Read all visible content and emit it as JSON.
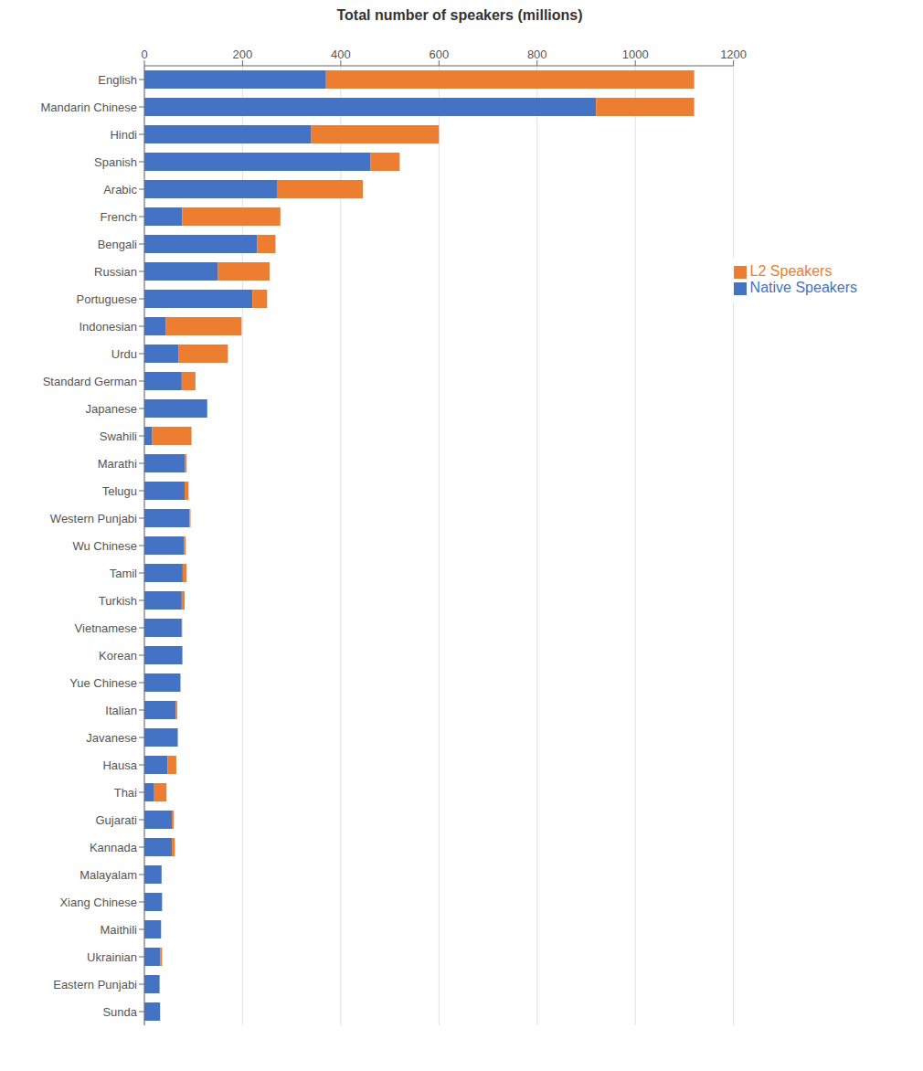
{
  "chart_data": {
    "type": "bar",
    "title": "Total number of speakers (millions)",
    "orientation": "horizontal",
    "stacked": true,
    "categories": [
      "English",
      "Mandarin Chinese",
      "Hindi",
      "Spanish",
      "Arabic",
      "French",
      "Bengali",
      "Russian",
      "Portuguese",
      "Indonesian",
      "Urdu",
      "Standard German",
      "Japanese",
      "Swahili",
      "Marathi",
      "Telugu",
      "Western Punjabi",
      "Wu Chinese",
      "Tamil",
      "Turkish",
      "Vietnamese",
      "Korean",
      "Yue Chinese",
      "Italian",
      "Javanese",
      "Hausa",
      "Thai",
      "Gujarati",
      "Kannada",
      "Malayalam",
      "Xiang Chinese",
      "Maithili",
      "Ukrainian",
      "Eastern Punjabi",
      "Sunda"
    ],
    "series": [
      {
        "name": "Native Speakers",
        "color": "#4472C4",
        "values": [
          370,
          920,
          340,
          460,
          270,
          77,
          230,
          150,
          220,
          43,
          70,
          76,
          128,
          16,
          83,
          82,
          92,
          81,
          78,
          76,
          76,
          77,
          73,
          64,
          68,
          47,
          20,
          56,
          56,
          35,
          36,
          34,
          32,
          31,
          32
        ]
      },
      {
        "name": "L2 Speakers",
        "color": "#ED7D31",
        "values": [
          750,
          200,
          260,
          60,
          175,
          200,
          37,
          105,
          30,
          155,
          100,
          28,
          0,
          80,
          3,
          8,
          2,
          3,
          8,
          6,
          1,
          1,
          1,
          3,
          0,
          18,
          25,
          4,
          6,
          0,
          0,
          0,
          4,
          0,
          0
        ]
      }
    ],
    "xlim": [
      0,
      1200
    ],
    "xticks": [
      0,
      200,
      400,
      600,
      800,
      1000,
      1200
    ],
    "grid": true,
    "legend": "upper right"
  }
}
